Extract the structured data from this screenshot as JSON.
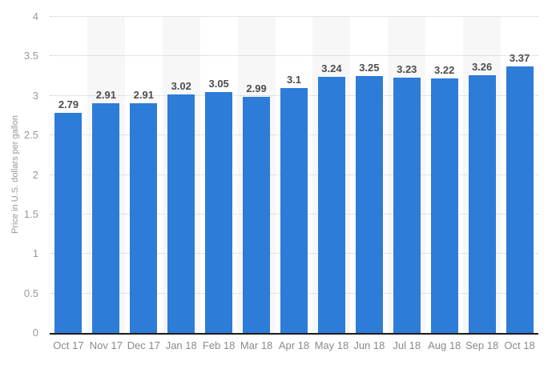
{
  "chart_data": {
    "type": "bar",
    "title": "",
    "xlabel": "",
    "ylabel": "Price in U.S. dollars per gallon",
    "categories": [
      "Oct 17",
      "Nov 17",
      "Dec 17",
      "Jan 18",
      "Feb 18",
      "Mar 18",
      "Apr 18",
      "May 18",
      "Jun 18",
      "Jul 18",
      "Aug 18",
      "Sep 18",
      "Oct 18"
    ],
    "values": [
      2.79,
      2.91,
      2.91,
      3.02,
      3.05,
      2.99,
      3.1,
      3.24,
      3.25,
      3.23,
      3.22,
      3.26,
      3.37
    ],
    "value_labels": [
      "2.79",
      "2.91",
      "2.91",
      "3.02",
      "3.05",
      "2.99",
      "3.1",
      "3.24",
      "3.25",
      "3.23",
      "3.22",
      "3.26",
      "3.37"
    ],
    "ylim": [
      0,
      4
    ],
    "yticks": [
      0,
      0.5,
      1,
      1.5,
      2,
      2.5,
      3,
      3.5,
      4
    ],
    "ytick_labels": [
      "0",
      "0.5",
      "1",
      "1.5",
      "2",
      "2.5",
      "3",
      "3.5",
      "4"
    ],
    "grid": "horizontal-dotted",
    "legend": "none",
    "banded_columns": "alternate-starting-second",
    "colors": {
      "bar": "#2d7cd8",
      "band": "#f7f7f7",
      "gridline": "#c9c9c9",
      "axis_line": "#1a1a1a",
      "value_label": "#4d4d4d",
      "y_tick_label": "#999999",
      "x_tick_label": "#8a8a8a",
      "background": "#ffffff"
    }
  }
}
